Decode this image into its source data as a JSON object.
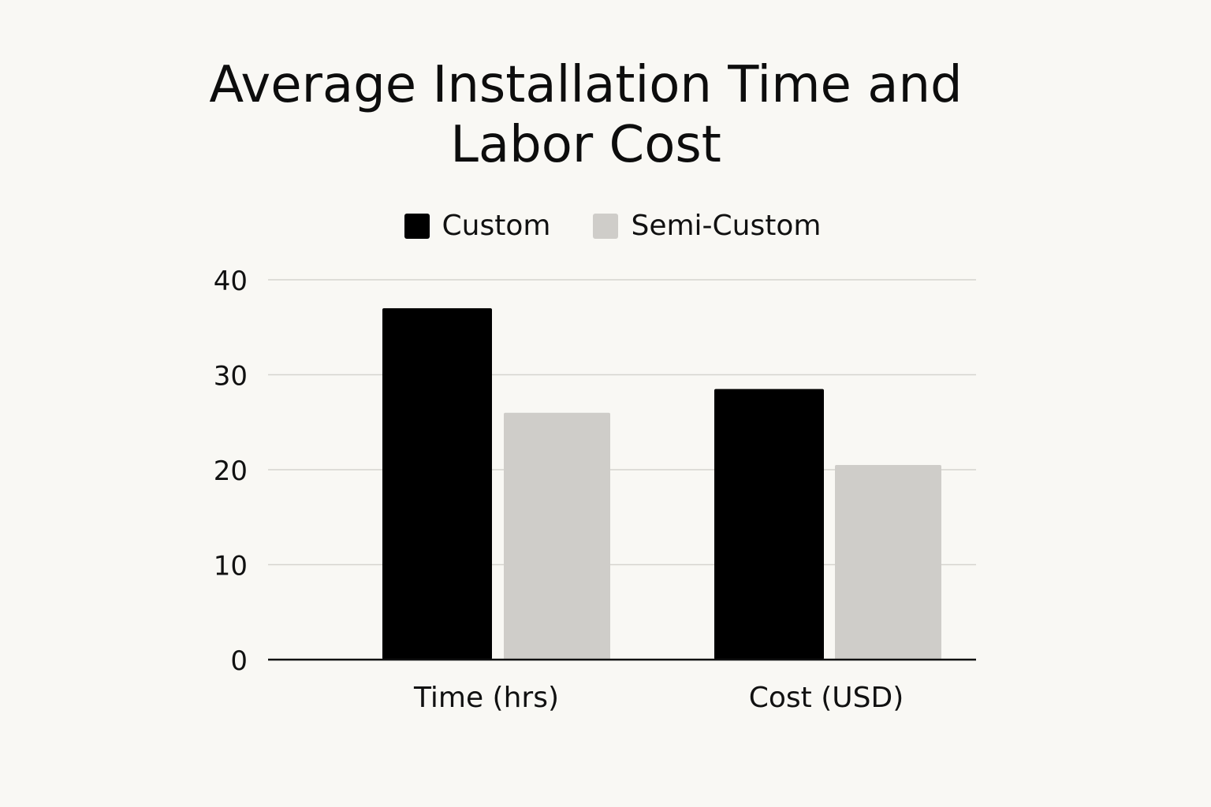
{
  "chart_data": {
    "type": "bar",
    "title_lines": [
      "Average Installation Time and",
      "Labor Cost"
    ],
    "categories": [
      "Time (hrs)",
      "Cost (USD)"
    ],
    "series": [
      {
        "name": "Custom",
        "values": [
          37,
          28.5
        ],
        "color": "#000000"
      },
      {
        "name": "Semi-Custom",
        "values": [
          26,
          20.5
        ],
        "color": "#cfcdc9"
      }
    ],
    "yticks": [
      0,
      10,
      20,
      30,
      40
    ],
    "ylim": [
      0,
      40
    ],
    "grid": true,
    "legend_position": "top-center"
  }
}
